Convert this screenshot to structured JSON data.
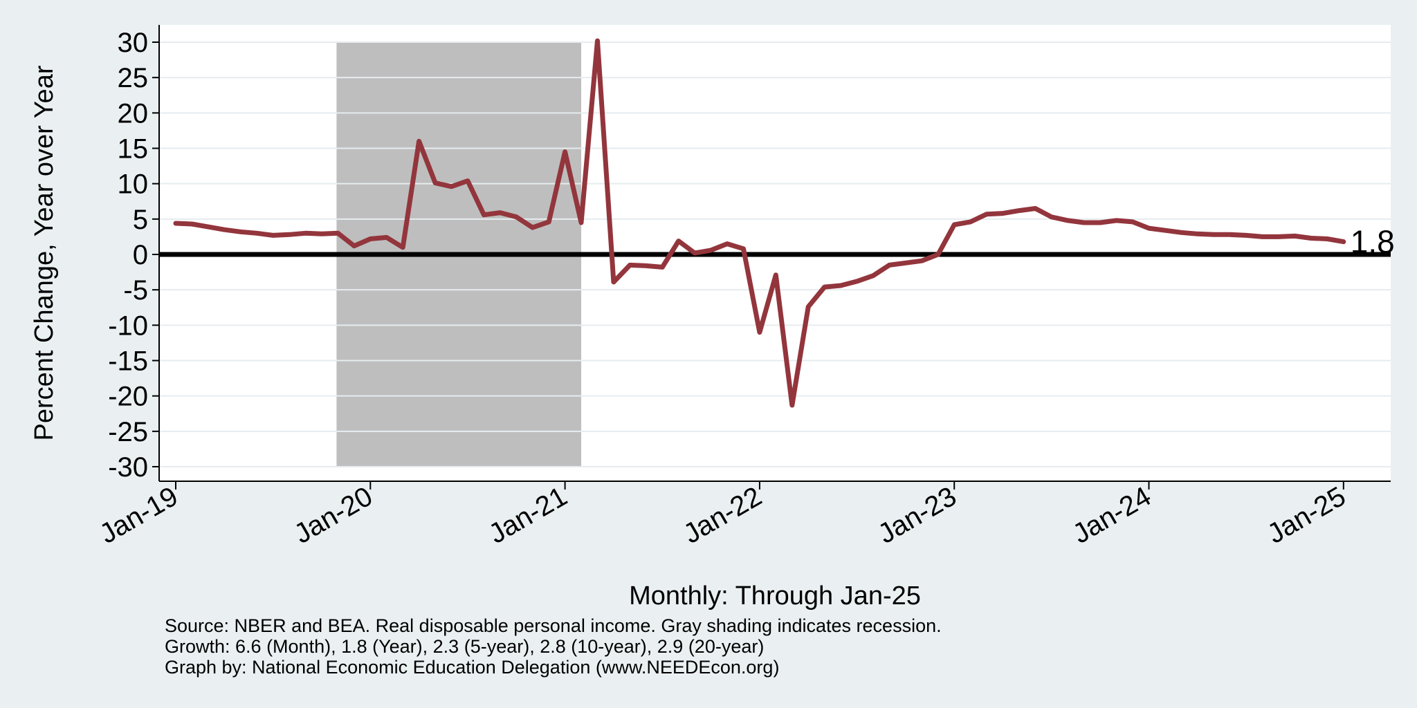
{
  "colors": {
    "page_background": "#eaf0f2",
    "plot_background": "#ffffff",
    "series_line": "#93353c",
    "recession_shading": "#bebebe",
    "zero_line": "#000000",
    "gridline": "#e6ecef"
  },
  "notes": {
    "source": "Source: NBER and BEA. Real disposable personal income. Gray shading indicates recession.",
    "growth": "Growth: 6.6 (Month), 1.8 (Year), 2.3 (5-year), 2.8 (10-year), 2.9 (20-year)",
    "credit": "Graph by: National Economic Education Delegation (www.NEEDEcon.org)"
  },
  "chart_data": {
    "type": "line",
    "title": "",
    "xlabel": "Monthly: Through Jan-25",
    "ylabel": "Percent Change, Year over Year",
    "ylim": [
      -30,
      30
    ],
    "yticks": [
      30,
      25,
      20,
      15,
      10,
      5,
      0,
      -5,
      -10,
      -15,
      -20,
      -25,
      -30
    ],
    "xticks": [
      "Jan-19",
      "Jan-20",
      "Jan-21",
      "Jan-22",
      "Jan-23",
      "Jan-24",
      "Jan-25"
    ],
    "grid": true,
    "zero_line": true,
    "end_label": "1.8",
    "recession_band": {
      "start": "Nov-19",
      "end": "Feb-21"
    },
    "series": [
      {
        "x": [
          "Jan-19",
          "Feb-19",
          "Mar-19",
          "Apr-19",
          "May-19",
          "Jun-19",
          "Jul-19",
          "Aug-19",
          "Sep-19",
          "Oct-19",
          "Nov-19",
          "Dec-19",
          "Jan-20",
          "Feb-20",
          "Mar-20",
          "Apr-20",
          "May-20",
          "Jun-20",
          "Jul-20",
          "Aug-20",
          "Sep-20",
          "Oct-20",
          "Nov-20",
          "Dec-20",
          "Jan-21",
          "Feb-21",
          "Mar-21",
          "Apr-21",
          "May-21",
          "Jun-21",
          "Jul-21",
          "Aug-21",
          "Sep-21",
          "Oct-21",
          "Nov-21",
          "Dec-21",
          "Jan-22",
          "Feb-22",
          "Mar-22",
          "Apr-22",
          "May-22",
          "Jun-22",
          "Jul-22",
          "Aug-22",
          "Sep-22",
          "Oct-22",
          "Nov-22",
          "Dec-22",
          "Jan-23",
          "Feb-23",
          "Mar-23",
          "Apr-23",
          "May-23",
          "Jun-23",
          "Jul-23",
          "Aug-23",
          "Sep-23",
          "Oct-23",
          "Nov-23",
          "Dec-23",
          "Jan-24",
          "Feb-24",
          "Mar-24",
          "Apr-24",
          "May-24",
          "Jun-24",
          "Jul-24",
          "Aug-24",
          "Sep-24",
          "Oct-24",
          "Nov-24",
          "Dec-24",
          "Jan-25"
        ],
        "values": [
          4.4,
          4.3,
          3.9,
          3.5,
          3.2,
          3.0,
          2.7,
          2.8,
          3.0,
          2.9,
          3.0,
          1.2,
          2.2,
          2.4,
          1.0,
          16.0,
          10.1,
          9.6,
          10.4,
          5.6,
          5.9,
          5.3,
          3.8,
          4.6,
          14.5,
          4.5,
          30.2,
          -3.9,
          -1.5,
          -1.6,
          -1.8,
          1.9,
          0.2,
          0.6,
          1.5,
          0.8,
          -11.0,
          -2.9,
          -21.3,
          -7.4,
          -4.6,
          -4.4,
          -3.8,
          -3.0,
          -1.5,
          -1.2,
          -0.9,
          0.0,
          4.2,
          4.6,
          5.7,
          5.8,
          6.2,
          6.5,
          5.3,
          4.8,
          4.5,
          4.5,
          4.8,
          4.6,
          3.7,
          3.4,
          3.1,
          2.9,
          2.8,
          2.8,
          2.7,
          2.5,
          2.5,
          2.6,
          2.3,
          2.2,
          1.8
        ]
      }
    ]
  }
}
